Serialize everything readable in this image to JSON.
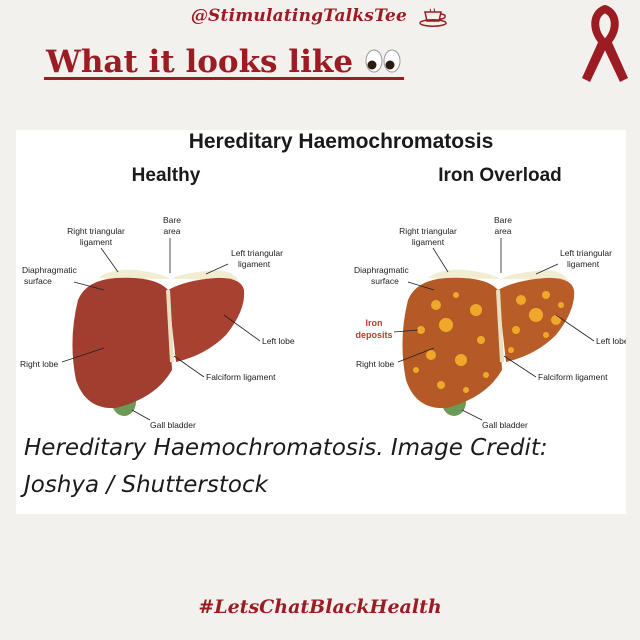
{
  "header": {
    "handle": "@StimulatingTalksTee",
    "heading": "What it looks like"
  },
  "diagram": {
    "title": "Hereditary Haemochromatosis",
    "healthy_title": "Healthy",
    "overload_title": "Iron Overload",
    "labels": {
      "right_triangular": [
        "Right triangular",
        "ligament"
      ],
      "bare_area": [
        "Bare",
        "area"
      ],
      "left_triangular": [
        "Left triangular",
        "ligament"
      ],
      "diaphragmatic": [
        "Diaphragmatic",
        "surface"
      ],
      "left_lobe": "Left lobe",
      "right_lobe": "Right lobe",
      "falciform": "Falciform ligament",
      "gall_bladder": "Gall bladder",
      "iron_deposits": [
        "Iron",
        "deposits"
      ]
    }
  },
  "caption": "Hereditary Haemochromatosis. Image Credit: Joshya / Shutterstock",
  "footer": {
    "hashtag": "#LetsChatBlackHealth"
  },
  "colors": {
    "accent": "#9b1c22",
    "background": "#f3f1ee",
    "liver_healthy": "#a23e2f",
    "liver_overload": "#b55a26",
    "iron_spot": "#f0a82a"
  },
  "icons": [
    "coffee-cup-icon",
    "awareness-ribbon-icon",
    "eyes-emoji-icon"
  ]
}
